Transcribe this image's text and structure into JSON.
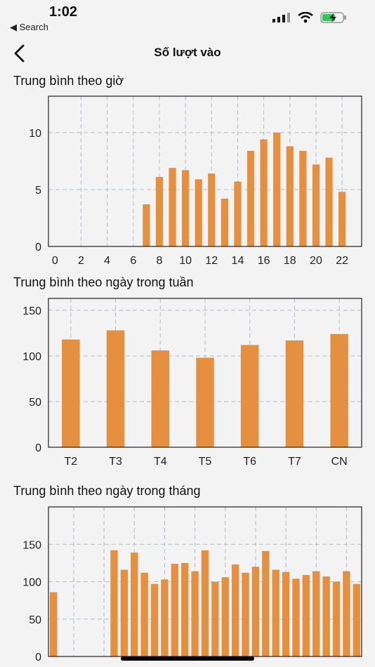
{
  "status_bar": {
    "time": "1:02",
    "back_label": "◀ Search",
    "icons": [
      "signal-icon",
      "wifi-icon",
      "battery-charging-icon"
    ],
    "battery_color": "#35c759"
  },
  "header": {
    "title": "Số lượt vào",
    "back_icon": "chevron-left-icon"
  },
  "colors": {
    "bar": "#e58f41",
    "grid": "#b5bccb",
    "frame": "#222222"
  },
  "chart_data": [
    {
      "type": "bar",
      "title": "Trung bình theo giờ",
      "x": [
        7,
        8,
        9,
        10,
        11,
        12,
        13,
        14,
        15,
        16,
        17,
        18,
        19,
        20,
        21,
        22
      ],
      "values": [
        3.7,
        6.1,
        6.9,
        6.7,
        5.9,
        6.4,
        4.2,
        5.7,
        8.4,
        9.4,
        10.0,
        8.8,
        8.4,
        7.2,
        7.8,
        4.8
      ],
      "xticks": [
        "0",
        "2",
        "4",
        "6",
        "8",
        "10",
        "12",
        "14",
        "16",
        "18",
        "20",
        "22"
      ],
      "yticks": [
        "0",
        "5",
        "10"
      ],
      "xlim": [
        -0.5,
        23.5
      ],
      "ylim": [
        0,
        13.2
      ],
      "grid": true
    },
    {
      "type": "bar",
      "title": "Trung bình theo ngày trong tuần",
      "categories": [
        "T2",
        "T3",
        "T4",
        "T5",
        "T6",
        "T7",
        "CN"
      ],
      "values": [
        118,
        128,
        106,
        98,
        112,
        117,
        124
      ],
      "yticks": [
        "0",
        "50",
        "100",
        "150"
      ],
      "ylim": [
        0,
        163
      ],
      "grid": true
    },
    {
      "type": "bar",
      "title": "Trung bình theo ngày trong tháng",
      "x": [
        1,
        7,
        8,
        9,
        10,
        11,
        12,
        13,
        14,
        15,
        16,
        17,
        18,
        19,
        20,
        21,
        22,
        23,
        24,
        25,
        26,
        27,
        28,
        29,
        30,
        31
      ],
      "values": [
        86,
        142,
        116,
        139,
        112,
        97,
        103,
        124,
        125,
        114,
        142,
        100,
        106,
        123,
        112,
        120,
        141,
        116,
        113,
        104,
        109,
        114,
        107,
        100,
        114,
        97
      ],
      "yticks": [
        "0",
        "50",
        "100",
        "150"
      ],
      "xticks": [
        "",
        "3",
        "6",
        "9",
        "12",
        "15",
        "18",
        "21",
        "24",
        "27",
        "30"
      ],
      "xlim": [
        0.5,
        31.5
      ],
      "ylim": [
        0,
        200
      ],
      "grid": true
    }
  ]
}
